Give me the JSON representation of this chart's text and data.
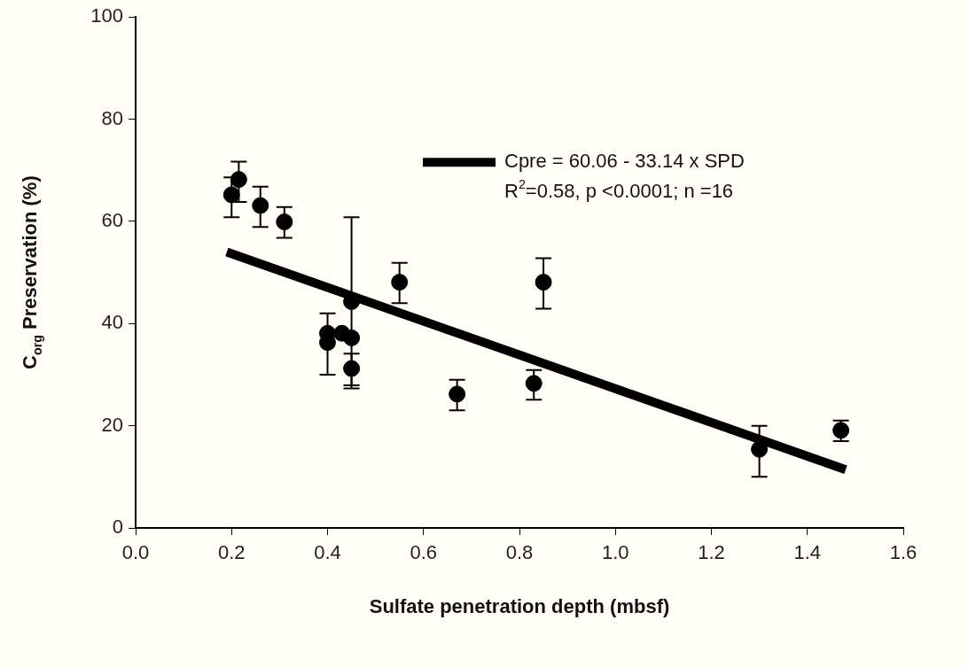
{
  "chart_data": {
    "type": "scatter",
    "xlabel": "Sulfate penetration depth (mbsf)",
    "ylabel": "C$_{org}$ Preservation (%)",
    "xlim": [
      0,
      1.6
    ],
    "ylim": [
      0,
      100
    ],
    "xticks": [
      {
        "value": 0,
        "label": "0.0"
      },
      {
        "value": 0.2,
        "label": "0.2"
      },
      {
        "value": 0.4,
        "label": "0.4"
      },
      {
        "value": 0.6,
        "label": "0.6"
      },
      {
        "value": 0.8,
        "label": "0.8"
      },
      {
        "value": 1,
        "label": "1.0"
      },
      {
        "value": 1.2,
        "label": "1.2"
      },
      {
        "value": 1.4,
        "label": "1.4"
      },
      {
        "value": 1.6,
        "label": "1.6"
      }
    ],
    "yticks": [
      0,
      20,
      40,
      60,
      80,
      100
    ],
    "legend": "top right",
    "series": [
      {
        "type": "scatter",
        "marker": "circle",
        "color": "#000000",
        "x": [
          0.2,
          0.215,
          0.26,
          0.31,
          0.4,
          0.4,
          0.43,
          0.45,
          0.45,
          0.45,
          0.55,
          0.67,
          0.83,
          0.85,
          1.3,
          1.47
        ],
        "values": [
          65.2,
          68.2,
          63.1,
          59.9,
          36.3,
          38.1,
          38.1,
          37.2,
          44.3,
          31.2,
          48.1,
          26.2,
          28.3,
          48.1,
          15.4,
          19.1
        ],
        "errors": [
          [
            60.8,
            68.6
          ],
          [
            63.8,
            71.7
          ],
          [
            58.9,
            66.8
          ],
          [
            56.8,
            62.8
          ],
          [
            30,
            42
          ],
          null,
          null,
          null,
          [
            27.9,
            60.8
          ],
          [
            27.3,
            34.1
          ],
          [
            44,
            51.9
          ],
          [
            23,
            29
          ],
          [
            25.1,
            30.9
          ],
          [
            42.9,
            52.8
          ],
          [
            10,
            20
          ],
          [
            17,
            21
          ]
        ]
      },
      {
        "type": "line",
        "marker": "none",
        "name": "Cpre = 60.06 - 33.14 x SPD",
        "color": "#000000",
        "x": [
          0.19,
          1.48
        ],
        "values": [
          54,
          11.4
        ]
      }
    ],
    "annotations": [
      "R$^{2}$=0.58, p <0.0001; n =16"
    ]
  }
}
